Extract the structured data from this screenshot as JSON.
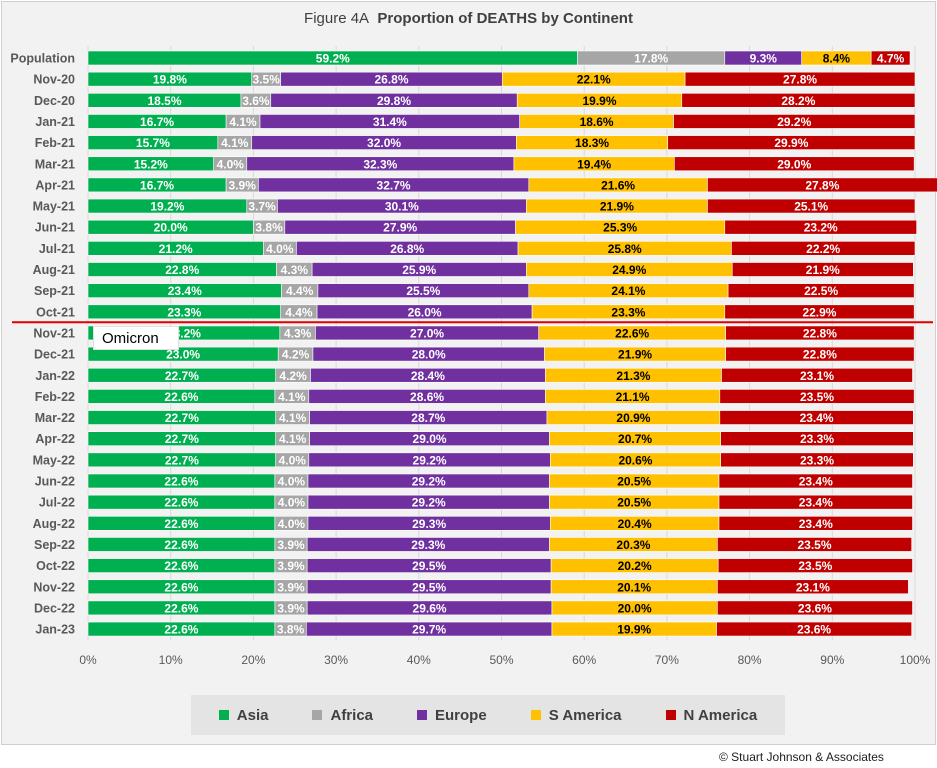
{
  "chart_data": {
    "type": "bar",
    "orientation": "horizontal",
    "stacked": "percent",
    "title_prefix": "Figure  4A",
    "title": "Proportion of DEATHS by Continent",
    "categories": [
      "Population",
      "Nov-20",
      "Dec-20",
      "Jan-21",
      "Feb-21",
      "Mar-21",
      "Apr-21",
      "May-21",
      "Jun-21",
      "Jul-21",
      "Aug-21",
      "Sep-21",
      "Oct-21",
      "Nov-21",
      "Dec-21",
      "Jan-22",
      "Feb-22",
      "Mar-22",
      "Apr-22",
      "May-22",
      "Jun-22",
      "Jul-22",
      "Aug-22",
      "Sep-22",
      "Oct-22",
      "Nov-22",
      "Dec-22",
      "Jan-23"
    ],
    "series": [
      {
        "name": "Asia",
        "color": "#00b050",
        "values": [
          59.2,
          19.8,
          18.5,
          16.7,
          15.7,
          15.2,
          16.7,
          19.2,
          20.0,
          21.2,
          22.8,
          23.4,
          23.3,
          23.2,
          23.0,
          22.7,
          22.6,
          22.7,
          22.7,
          22.7,
          22.6,
          22.6,
          22.6,
          22.6,
          22.6,
          22.6,
          22.6,
          22.6
        ]
      },
      {
        "name": "Africa",
        "color": "#a6a6a6",
        "values": [
          17.8,
          3.5,
          3.6,
          4.1,
          4.1,
          4.0,
          3.9,
          3.7,
          3.8,
          4.0,
          4.3,
          4.4,
          4.4,
          4.3,
          4.2,
          4.2,
          4.1,
          4.1,
          4.1,
          4.0,
          4.0,
          4.0,
          4.0,
          3.9,
          3.9,
          3.9,
          3.9,
          3.8
        ]
      },
      {
        "name": "Europe",
        "color": "#7030a0",
        "values": [
          9.3,
          26.8,
          29.8,
          31.4,
          32.0,
          32.3,
          32.7,
          30.1,
          27.9,
          26.8,
          25.9,
          25.5,
          26.0,
          27.0,
          28.0,
          28.4,
          28.6,
          28.7,
          29.0,
          29.2,
          29.2,
          29.2,
          29.3,
          29.3,
          29.5,
          29.5,
          29.6,
          29.7
        ]
      },
      {
        "name": "S America",
        "color": "#ffc000",
        "values": [
          8.4,
          22.1,
          19.9,
          18.6,
          18.3,
          19.4,
          21.6,
          21.9,
          25.3,
          25.8,
          24.9,
          24.1,
          23.3,
          22.6,
          21.9,
          21.3,
          21.1,
          20.9,
          20.7,
          20.6,
          20.5,
          20.5,
          20.4,
          20.3,
          20.2,
          20.1,
          20.0,
          19.9
        ]
      },
      {
        "name": "N America",
        "color": "#c00000",
        "values": [
          4.7,
          27.8,
          28.2,
          29.2,
          29.9,
          29.0,
          27.8,
          25.1,
          23.2,
          22.2,
          21.9,
          22.5,
          22.9,
          22.8,
          22.8,
          23.1,
          23.5,
          23.4,
          23.3,
          23.3,
          23.4,
          23.4,
          23.4,
          23.5,
          23.5,
          23.1,
          23.6,
          23.6
        ]
      }
    ],
    "xticks": [
      "0%",
      "10%",
      "20%",
      "30%",
      "40%",
      "50%",
      "60%",
      "70%",
      "80%",
      "90%",
      "100%"
    ],
    "xlim": [
      0,
      100
    ],
    "legend_position": "bottom",
    "annotation": {
      "text": "Omicron",
      "marker_after_category": "Oct-21",
      "line_color": "#e00000"
    }
  },
  "footer": {
    "copyright": "© Stuart Johnson & Associates"
  }
}
